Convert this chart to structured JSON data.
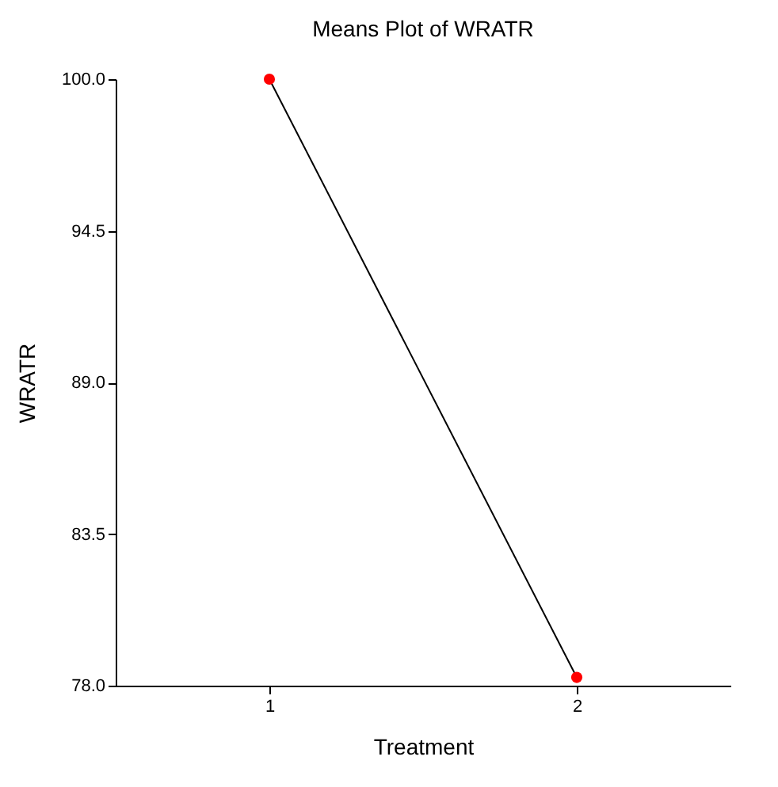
{
  "chart_data": {
    "type": "line",
    "title": "Means Plot of WRATR",
    "xlabel": "Treatment",
    "ylabel": "WRATR",
    "x": [
      1,
      2
    ],
    "series": [
      {
        "color": "#000000",
        "colors": [
          "#ff0000",
          "#ff0000"
        ],
        "values": [
          100.0,
          78.3
        ]
      }
    ],
    "xlim": [
      0.5,
      2.5
    ],
    "xticks": [
      1,
      2
    ],
    "ylim": [
      78.0,
      100.0
    ],
    "yticks": [
      {
        "value": 78.0,
        "label": "78.0"
      },
      {
        "value": 83.5,
        "label": "83.5"
      },
      {
        "value": 89.0,
        "label": "89.0"
      },
      {
        "value": 94.5,
        "label": "94.5"
      },
      {
        "value": 100.0,
        "label": "100.0"
      }
    ],
    "grid": false,
    "marker": "circle",
    "line_style": "solid"
  }
}
